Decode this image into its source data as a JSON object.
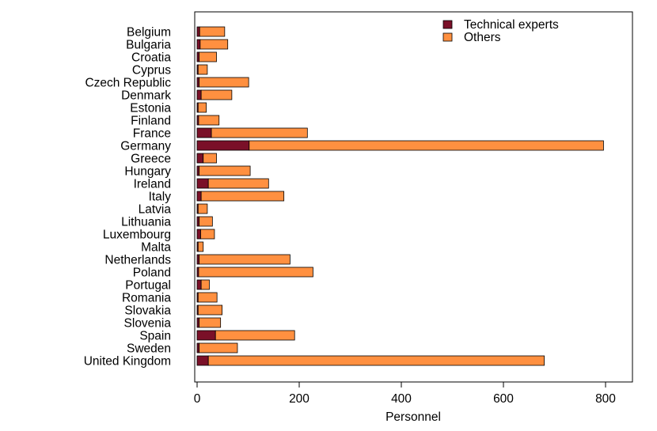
{
  "chart_data": {
    "type": "bar",
    "orientation": "horizontal",
    "stacked": true,
    "categories": [
      "Belgium",
      "Bulgaria",
      "Croatia",
      "Cyprus",
      "Czech Republic",
      "Denmark",
      "Estonia",
      "Finland",
      "France",
      "Germany",
      "Greece",
      "Hungary",
      "Ireland",
      "Italy",
      "Latvia",
      "Lithuania",
      "Luxembourg",
      "Malta",
      "Netherlands",
      "Poland",
      "Portugal",
      "Romania",
      "Slovakia",
      "Slovenia",
      "Spain",
      "Sweden",
      "United Kingdom"
    ],
    "series": [
      {
        "name": "Technical experts",
        "color": "#7a1028",
        "values": [
          5,
          6,
          4,
          2,
          4,
          8,
          2,
          3,
          28,
          102,
          12,
          4,
          22,
          8,
          2,
          4,
          7,
          2,
          4,
          3,
          8,
          2,
          2,
          4,
          36,
          4,
          22
        ]
      },
      {
        "name": "Others",
        "color": "#ff9040",
        "values": [
          49,
          54,
          34,
          18,
          97,
          60,
          16,
          40,
          188,
          694,
          26,
          100,
          118,
          162,
          18,
          26,
          27,
          10,
          178,
          224,
          16,
          37,
          47,
          42,
          155,
          75,
          658
        ]
      }
    ],
    "xlabel": "Personnel",
    "ylabel": "",
    "xlim": [
      0,
      850
    ],
    "xticks": [
      0,
      200,
      400,
      600,
      800
    ],
    "legend": "top-right",
    "grid": false
  }
}
